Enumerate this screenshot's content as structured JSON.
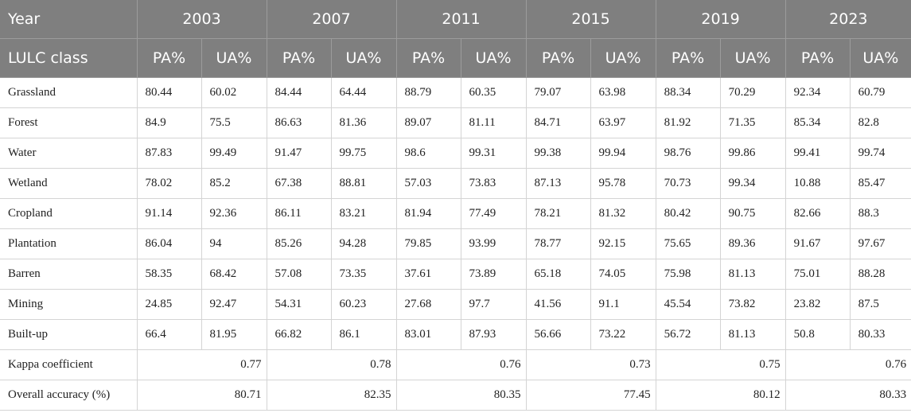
{
  "header": {
    "first_col": "Year",
    "sub_first_col": "LULC class",
    "years": [
      "2003",
      "2007",
      "2011",
      "2015",
      "2019",
      "2023"
    ],
    "pa_label": "PA%",
    "ua_label": "UA%"
  },
  "rows": [
    {
      "label": "Grassland",
      "values": [
        "80.44",
        "60.02",
        "84.44",
        "64.44",
        "88.79",
        "60.35",
        "79.07",
        "63.98",
        "88.34",
        "70.29",
        "92.34",
        "60.79"
      ]
    },
    {
      "label": "Forest",
      "values": [
        "84.9",
        "75.5",
        "86.63",
        "81.36",
        "89.07",
        "81.11",
        "84.71",
        "63.97",
        "81.92",
        "71.35",
        "85.34",
        "82.8"
      ]
    },
    {
      "label": "Water",
      "values": [
        "87.83",
        "99.49",
        "91.47",
        "99.75",
        "98.6",
        "99.31",
        "99.38",
        "99.94",
        "98.76",
        "99.86",
        "99.41",
        "99.74"
      ]
    },
    {
      "label": "Wetland",
      "values": [
        "78.02",
        "85.2",
        "67.38",
        "88.81",
        "57.03",
        "73.83",
        "87.13",
        "95.78",
        "70.73",
        "99.34",
        "10.88",
        "85.47"
      ]
    },
    {
      "label": "Cropland",
      "values": [
        "91.14",
        "92.36",
        "86.11",
        "83.21",
        "81.94",
        "77.49",
        "78.21",
        "81.32",
        "80.42",
        "90.75",
        "82.66",
        "88.3"
      ]
    },
    {
      "label": "Plantation",
      "values": [
        "86.04",
        "94",
        "85.26",
        "94.28",
        "79.85",
        "93.99",
        "78.77",
        "92.15",
        "75.65",
        "89.36",
        "91.67",
        "97.67"
      ]
    },
    {
      "label": "Barren",
      "values": [
        "58.35",
        "68.42",
        "57.08",
        "73.35",
        "37.61",
        "73.89",
        "65.18",
        "74.05",
        "75.98",
        "81.13",
        "75.01",
        "88.28"
      ]
    },
    {
      "label": "Mining",
      "values": [
        "24.85",
        "92.47",
        "54.31",
        "60.23",
        "27.68",
        "97.7",
        "41.56",
        "91.1",
        "45.54",
        "73.82",
        "23.82",
        "87.5"
      ]
    },
    {
      "label": "Built-up",
      "values": [
        "66.4",
        "81.95",
        "66.82",
        "86.1",
        "83.01",
        "87.93",
        "56.66",
        "73.22",
        "56.72",
        "81.13",
        "50.8",
        "80.33"
      ]
    }
  ],
  "summary": [
    {
      "label": "Kappa coefficient",
      "values": [
        "0.77",
        "0.78",
        "0.76",
        "0.73",
        "0.75",
        "0.76"
      ]
    },
    {
      "label": "Overall accuracy (%)",
      "values": [
        "80.71",
        "82.35",
        "80.35",
        "77.45",
        "80.12",
        "80.33"
      ]
    }
  ]
}
